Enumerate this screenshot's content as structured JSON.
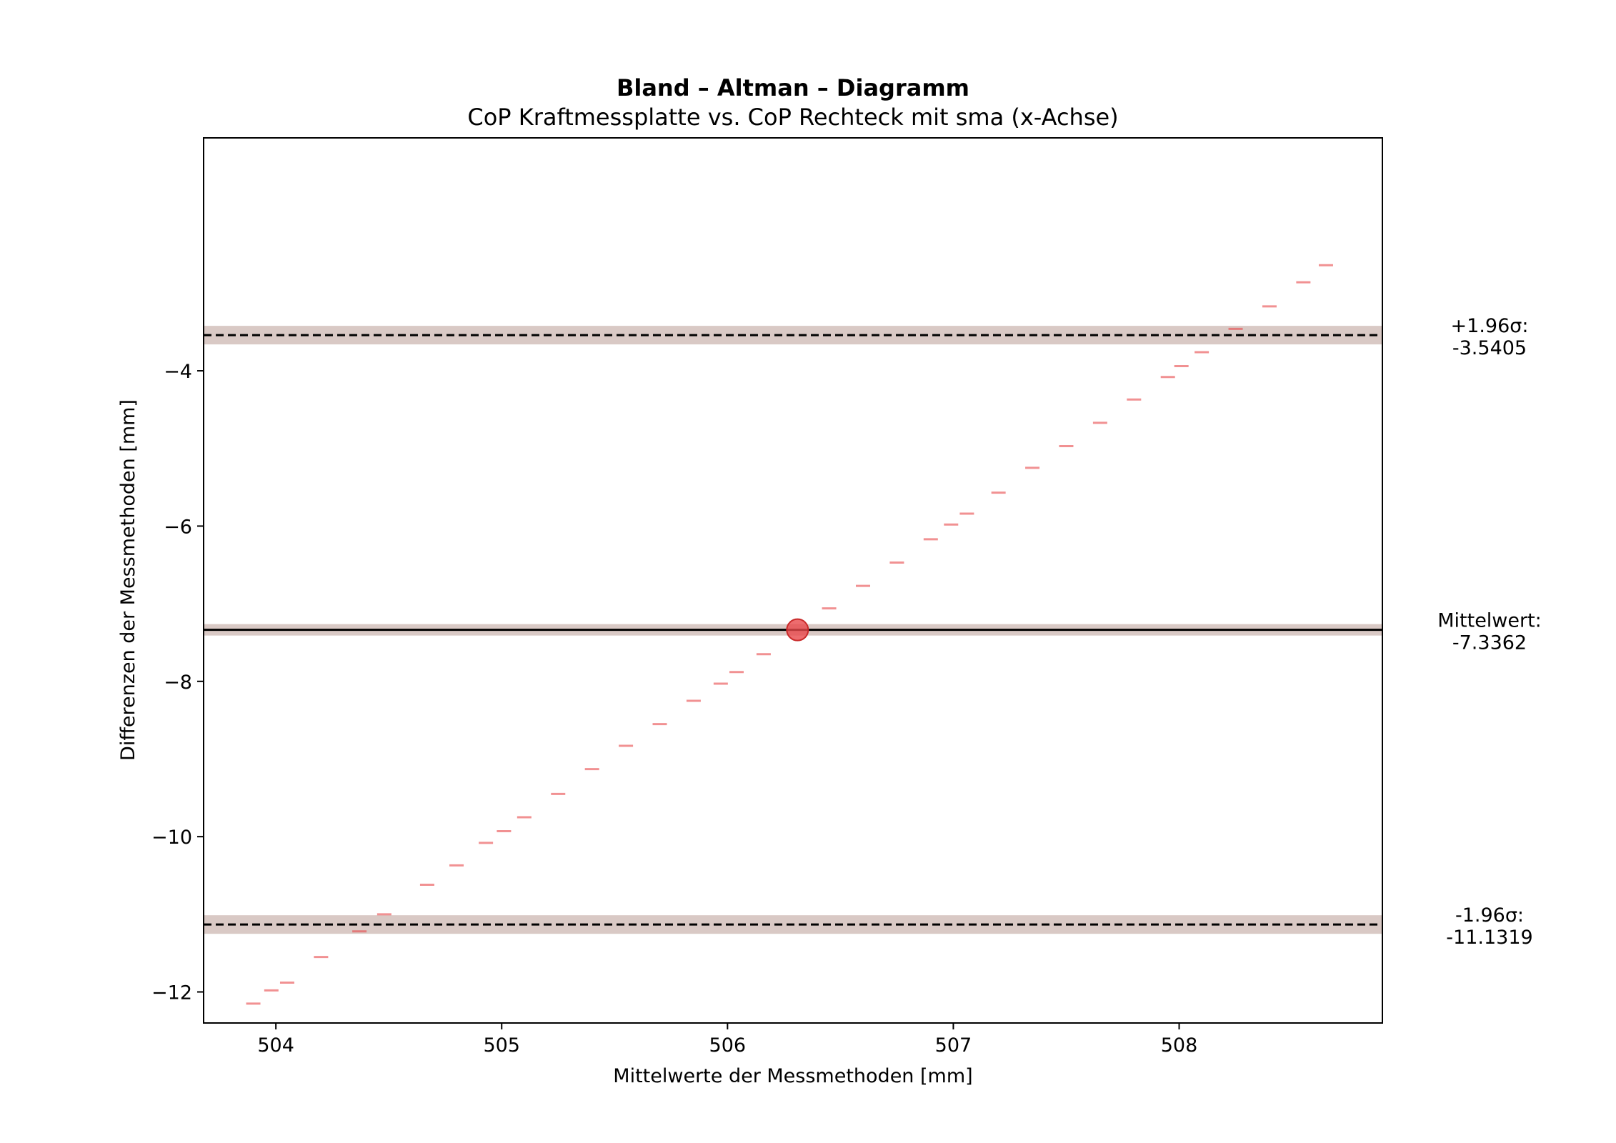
{
  "chart_data": {
    "type": "scatter",
    "title": "Bland – Altman – Diagramm",
    "subtitle": "CoP Kraftmessplatte vs. CoP Rechteck mit sma (x-Achse)",
    "xlabel": "Mittelwerte der Messmethoden [mm]",
    "ylabel": "Differenzen der Messmethoden [mm]",
    "xlim": [
      503.68,
      508.9
    ],
    "ylim": [
      -12.4,
      -1.0
    ],
    "xticks": [
      504,
      505,
      506,
      507,
      508
    ],
    "yticks": [
      -4,
      -6,
      -8,
      -10,
      -12
    ],
    "xtick_labels": [
      "504",
      "505",
      "506",
      "507",
      "508"
    ],
    "ytick_labels": [
      "−4",
      "−6",
      "−8",
      "−10",
      "−12"
    ],
    "grid": false,
    "marker_color": "#e8474a",
    "band_color": "#d9c9c5",
    "points": [
      {
        "x": 503.9,
        "y": -12.15
      },
      {
        "x": 503.98,
        "y": -11.98
      },
      {
        "x": 504.05,
        "y": -11.88
      },
      {
        "x": 504.2,
        "y": -11.55
      },
      {
        "x": 504.37,
        "y": -11.22
      },
      {
        "x": 504.48,
        "y": -11.0
      },
      {
        "x": 504.67,
        "y": -10.62
      },
      {
        "x": 504.8,
        "y": -10.37
      },
      {
        "x": 504.93,
        "y": -10.08
      },
      {
        "x": 505.01,
        "y": -9.93
      },
      {
        "x": 505.1,
        "y": -9.75
      },
      {
        "x": 505.25,
        "y": -9.45
      },
      {
        "x": 505.4,
        "y": -9.13
      },
      {
        "x": 505.55,
        "y": -8.83
      },
      {
        "x": 505.7,
        "y": -8.55
      },
      {
        "x": 505.85,
        "y": -8.25
      },
      {
        "x": 505.97,
        "y": -8.03
      },
      {
        "x": 506.04,
        "y": -7.88
      },
      {
        "x": 506.16,
        "y": -7.65
      },
      {
        "x": 506.45,
        "y": -7.06
      },
      {
        "x": 506.6,
        "y": -6.77
      },
      {
        "x": 506.75,
        "y": -6.47
      },
      {
        "x": 506.9,
        "y": -6.17
      },
      {
        "x": 506.99,
        "y": -5.98
      },
      {
        "x": 507.06,
        "y": -5.84
      },
      {
        "x": 507.2,
        "y": -5.57
      },
      {
        "x": 507.35,
        "y": -5.25
      },
      {
        "x": 507.5,
        "y": -4.97
      },
      {
        "x": 507.65,
        "y": -4.67
      },
      {
        "x": 507.8,
        "y": -4.37
      },
      {
        "x": 507.95,
        "y": -4.08
      },
      {
        "x": 508.01,
        "y": -3.94
      },
      {
        "x": 508.1,
        "y": -3.76
      },
      {
        "x": 508.25,
        "y": -3.46
      },
      {
        "x": 508.4,
        "y": -3.17
      },
      {
        "x": 508.55,
        "y": -2.86
      },
      {
        "x": 508.65,
        "y": -2.64
      }
    ],
    "mean_point": {
      "x": 506.31,
      "y": -7.3362
    },
    "lines": [
      {
        "name": "upper",
        "label": "+1.96σ:",
        "value_text": "-3.5405",
        "y": -3.5405,
        "style": "dashed"
      },
      {
        "name": "mean",
        "label": "Mittelwert:",
        "value_text": "-7.3362",
        "y": -7.3362,
        "style": "solid"
      },
      {
        "name": "lower",
        "label": "-1.96σ:",
        "value_text": "-11.1319",
        "y": -11.1319,
        "style": "dashed"
      }
    ]
  }
}
